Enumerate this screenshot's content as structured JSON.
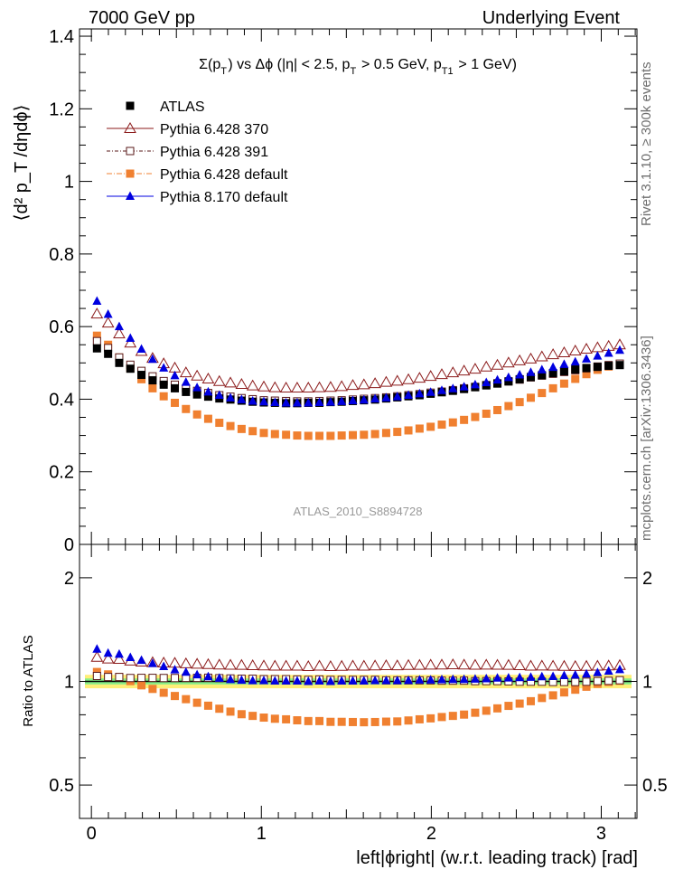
{
  "header": {
    "left": "7000 GeV pp",
    "right": "Underlying Event"
  },
  "side_labels": {
    "rivet": "Rivet 3.1.10, ≥ 300k events",
    "mcplots": "mcplots.cern.ch [arXiv:1306.3436]"
  },
  "chart_data": [
    {
      "type": "scatter",
      "title": "Σ(p_T) vs Δϕ (|η| < 2.5, p_T > 0.5 GeV, p_T1 > 1 GeV)",
      "ylabel": "⟨d² p_T /dηdϕ⟩",
      "xlabel": "left|ϕright| (w.r.t. leading track) [rad]",
      "watermark": "ATLAS_2010_S8894728",
      "xlim": [
        -0.07,
        3.21
      ],
      "ylim": [
        0,
        1.42
      ],
      "x_ticks": [
        "0",
        "1",
        "2",
        "3"
      ],
      "y_ticks": [
        "0",
        "0.2",
        "0.4",
        "0.6",
        "0.8",
        "1",
        "1.2",
        "1.4"
      ],
      "legend_position": "top-left",
      "x": [
        0.0327,
        0.0982,
        0.1636,
        0.2291,
        0.2945,
        0.36,
        0.4254,
        0.4909,
        0.5563,
        0.6218,
        0.6872,
        0.7527,
        0.8181,
        0.8836,
        0.949,
        1.0145,
        1.0799,
        1.1454,
        1.2108,
        1.2763,
        1.3417,
        1.4072,
        1.4726,
        1.5381,
        1.6035,
        1.669,
        1.7344,
        1.7999,
        1.8653,
        1.9308,
        1.9962,
        2.0617,
        2.1271,
        2.1926,
        2.258,
        2.3235,
        2.3889,
        2.4544,
        2.5198,
        2.5853,
        2.6507,
        2.7162,
        2.7816,
        2.8471,
        2.9125,
        2.978,
        3.0434,
        3.1089
      ],
      "series": [
        {
          "name": "ATLAS",
          "color": "#000000",
          "marker": "filled-square",
          "values": [
            0.54,
            0.525,
            0.5,
            0.484,
            0.467,
            0.452,
            0.44,
            0.43,
            0.42,
            0.413,
            0.407,
            0.402,
            0.399,
            0.396,
            0.393,
            0.391,
            0.39,
            0.389,
            0.389,
            0.39,
            0.39,
            0.392,
            0.393,
            0.395,
            0.397,
            0.399,
            0.402,
            0.405,
            0.408,
            0.411,
            0.415,
            0.419,
            0.423,
            0.428,
            0.433,
            0.438,
            0.443,
            0.449,
            0.455,
            0.461,
            0.466,
            0.472,
            0.477,
            0.482,
            0.486,
            0.489,
            0.492,
            0.494
          ]
        },
        {
          "name": "Pythia 6.428 370",
          "color": "#8b1a1a",
          "marker": "open-triangle",
          "values": [
            0.635,
            0.61,
            0.58,
            0.555,
            0.532,
            0.513,
            0.498,
            0.486,
            0.473,
            0.464,
            0.456,
            0.449,
            0.445,
            0.441,
            0.437,
            0.434,
            0.432,
            0.431,
            0.431,
            0.431,
            0.432,
            0.433,
            0.435,
            0.438,
            0.44,
            0.443,
            0.447,
            0.45,
            0.454,
            0.458,
            0.463,
            0.468,
            0.473,
            0.478,
            0.483,
            0.489,
            0.494,
            0.5,
            0.506,
            0.511,
            0.517,
            0.523,
            0.528,
            0.533,
            0.538,
            0.542,
            0.546,
            0.55
          ]
        },
        {
          "name": "Pythia 6.428 391",
          "color": "#5a1a1a",
          "marker": "open-square",
          "values": [
            0.56,
            0.541,
            0.515,
            0.495,
            0.478,
            0.463,
            0.45,
            0.44,
            0.43,
            0.423,
            0.417,
            0.411,
            0.407,
            0.403,
            0.4,
            0.397,
            0.396,
            0.395,
            0.394,
            0.394,
            0.395,
            0.396,
            0.397,
            0.399,
            0.401,
            0.403,
            0.405,
            0.408,
            0.411,
            0.414,
            0.418,
            0.421,
            0.425,
            0.43,
            0.434,
            0.439,
            0.444,
            0.449,
            0.454,
            0.46,
            0.465,
            0.47,
            0.475,
            0.48,
            0.485,
            0.49,
            0.494,
            0.498
          ]
        },
        {
          "name": "Pythia 6.428 default",
          "color": "#f08030",
          "marker": "filled-square",
          "values": [
            0.575,
            0.55,
            0.515,
            0.485,
            0.455,
            0.43,
            0.408,
            0.39,
            0.373,
            0.358,
            0.346,
            0.335,
            0.326,
            0.318,
            0.312,
            0.307,
            0.304,
            0.302,
            0.3,
            0.299,
            0.299,
            0.299,
            0.3,
            0.301,
            0.302,
            0.304,
            0.307,
            0.31,
            0.314,
            0.319,
            0.324,
            0.33,
            0.336,
            0.343,
            0.351,
            0.36,
            0.37,
            0.381,
            0.392,
            0.404,
            0.417,
            0.43,
            0.443,
            0.456,
            0.469,
            0.481,
            0.49,
            0.496
          ]
        },
        {
          "name": "Pythia 8.170 default",
          "color": "#0000e0",
          "marker": "filled-triangle",
          "values": [
            0.67,
            0.634,
            0.6,
            0.568,
            0.538,
            0.51,
            0.486,
            0.465,
            0.447,
            0.432,
            0.42,
            0.411,
            0.404,
            0.399,
            0.395,
            0.393,
            0.391,
            0.39,
            0.39,
            0.39,
            0.391,
            0.392,
            0.394,
            0.396,
            0.398,
            0.401,
            0.404,
            0.407,
            0.411,
            0.415,
            0.419,
            0.424,
            0.429,
            0.434,
            0.44,
            0.446,
            0.453,
            0.46,
            0.467,
            0.474,
            0.481,
            0.488,
            0.496,
            0.503,
            0.511,
            0.519,
            0.527,
            0.535
          ]
        }
      ]
    },
    {
      "type": "scatter",
      "title": "",
      "ylabel": "Ratio to ATLAS",
      "xlabel": "left|ϕright| (w.r.t. leading track) [rad]",
      "scale": "log",
      "xlim": [
        -0.07,
        3.21
      ],
      "ylim": [
        0.4,
        2.5
      ],
      "x_ticks": [
        "0",
        "1",
        "2",
        "3"
      ],
      "y_ticks": [
        "0.5",
        "1",
        "2"
      ],
      "bands": [
        {
          "name": "ATLAS total uncertainty",
          "color": "#ffee77",
          "low": 0.955,
          "high": 1.045
        },
        {
          "name": "ATLAS statistical uncertainty",
          "color": "#88ee88",
          "low": 0.98,
          "high": 1.02
        }
      ],
      "series": [
        {
          "name": "Pythia 6.428 370",
          "color": "#8b1a1a",
          "marker": "open-triangle",
          "values": [
            1.176,
            1.162,
            1.16,
            1.147,
            1.139,
            1.135,
            1.132,
            1.13,
            1.126,
            1.123,
            1.12,
            1.117,
            1.115,
            1.114,
            1.112,
            1.11,
            1.108,
            1.108,
            1.108,
            1.105,
            1.108,
            1.105,
            1.107,
            1.109,
            1.108,
            1.11,
            1.112,
            1.111,
            1.113,
            1.114,
            1.116,
            1.117,
            1.118,
            1.117,
            1.115,
            1.116,
            1.115,
            1.114,
            1.112,
            1.108,
            1.109,
            1.108,
            1.107,
            1.106,
            1.107,
            1.108,
            1.11,
            1.113
          ]
        },
        {
          "name": "Pythia 6.428 391",
          "color": "#5a1a1a",
          "marker": "open-square",
          "values": [
            1.037,
            1.03,
            1.03,
            1.023,
            1.024,
            1.024,
            1.023,
            1.023,
            1.024,
            1.024,
            1.025,
            1.022,
            1.02,
            1.018,
            1.018,
            1.015,
            1.015,
            1.015,
            1.013,
            1.01,
            1.013,
            1.01,
            1.01,
            1.01,
            1.01,
            1.01,
            1.007,
            1.007,
            1.007,
            1.007,
            1.007,
            1.005,
            1.005,
            1.005,
            1.002,
            1.002,
            1.002,
            1.0,
            0.998,
            0.998,
            0.998,
            0.996,
            0.996,
            0.996,
            0.998,
            1.002,
            1.004,
            1.008
          ]
        },
        {
          "name": "Pythia 6.428 default",
          "color": "#f08030",
          "marker": "filled-square",
          "values": [
            1.065,
            1.048,
            1.03,
            1.002,
            0.974,
            0.951,
            0.927,
            0.907,
            0.888,
            0.867,
            0.85,
            0.833,
            0.817,
            0.803,
            0.794,
            0.785,
            0.779,
            0.776,
            0.771,
            0.767,
            0.767,
            0.763,
            0.763,
            0.762,
            0.761,
            0.762,
            0.764,
            0.765,
            0.77,
            0.776,
            0.781,
            0.788,
            0.794,
            0.801,
            0.811,
            0.822,
            0.835,
            0.849,
            0.862,
            0.876,
            0.895,
            0.911,
            0.929,
            0.946,
            0.965,
            0.984,
            0.996,
            1.004
          ]
        },
        {
          "name": "Pythia 8.170 default",
          "color": "#0000e0",
          "marker": "filled-triangle",
          "values": [
            1.241,
            1.208,
            1.2,
            1.174,
            1.152,
            1.128,
            1.105,
            1.081,
            1.064,
            1.046,
            1.032,
            1.022,
            1.013,
            1.008,
            1.005,
            1.005,
            1.003,
            1.003,
            1.003,
            1.0,
            1.003,
            1.0,
            1.003,
            1.003,
            1.003,
            1.005,
            1.005,
            1.005,
            1.007,
            1.01,
            1.01,
            1.012,
            1.014,
            1.014,
            1.016,
            1.018,
            1.023,
            1.024,
            1.026,
            1.028,
            1.032,
            1.034,
            1.04,
            1.044,
            1.051,
            1.061,
            1.071,
            1.083
          ]
        }
      ]
    }
  ]
}
